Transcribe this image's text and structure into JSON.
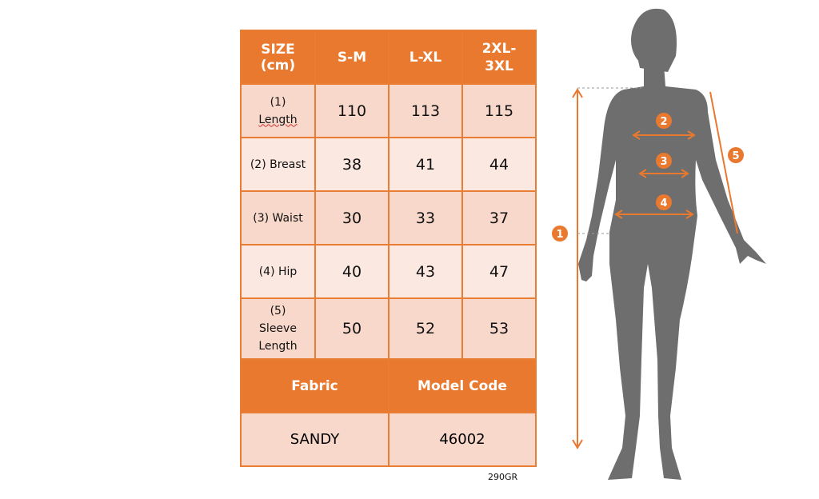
{
  "table": {
    "header": [
      "SIZE (cm)",
      "S-M",
      "L-XL",
      "2XL-3XL"
    ],
    "header_lines": [
      [
        "SIZE",
        "(cm)"
      ],
      [
        "S-M"
      ],
      [
        "L-XL"
      ],
      [
        "2XL-",
        "3XL"
      ]
    ],
    "rows": [
      {
        "label": [
          "(1)",
          "Length"
        ],
        "values": [
          "110",
          "113",
          "115"
        ]
      },
      {
        "label": [
          "(2) Breast"
        ],
        "values": [
          "38",
          "41",
          "44"
        ]
      },
      {
        "label": [
          "(3) Waist"
        ],
        "values": [
          "30",
          "33",
          "37"
        ]
      },
      {
        "label": [
          "(4) Hip"
        ],
        "values": [
          "40",
          "43",
          "47"
        ]
      },
      {
        "label": [
          "(5)",
          "Sleeve",
          "Length"
        ],
        "values": [
          "50",
          "52",
          "53"
        ]
      }
    ],
    "footer_headers": [
      "Fabric",
      "Model Code"
    ],
    "footer_values": [
      "SANDY",
      "46002"
    ]
  },
  "fabric_weight": "290GR",
  "figure": {
    "markers": [
      "1",
      "2",
      "3",
      "4",
      "5"
    ],
    "icon": "woman-silhouette-icon"
  },
  "colors": {
    "accent": "#E8792F",
    "row_dark": "#F8D8CA",
    "row_light": "#FBE8E0",
    "silhouette": "#6E6E6E"
  }
}
